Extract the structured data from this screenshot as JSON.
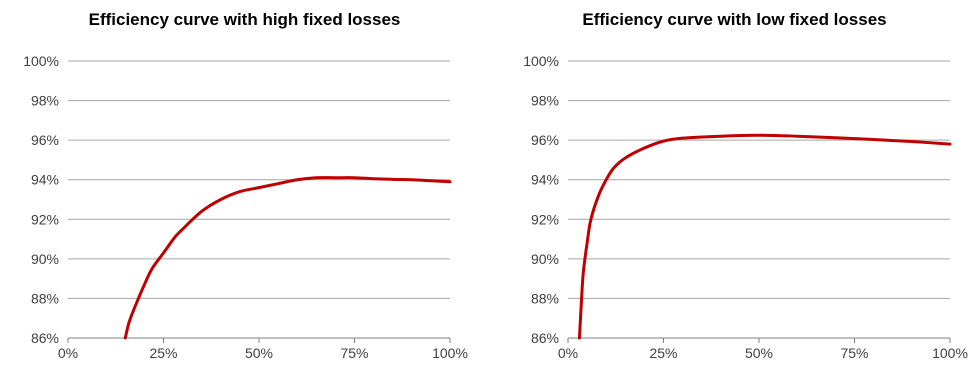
{
  "chart_data": [
    {
      "type": "line",
      "title": "Efficiency curve with high fixed losses",
      "xlabel": "",
      "ylabel": "",
      "x_ticks": [
        "0%",
        "25%",
        "50%",
        "75%",
        "100%"
      ],
      "y_ticks": [
        "86%",
        "88%",
        "90%",
        "92%",
        "94%",
        "96%",
        "98%",
        "100%"
      ],
      "xlim": [
        0,
        1
      ],
      "ylim": [
        0.86,
        1.0
      ],
      "grid": true,
      "series": [
        {
          "color": "#c00000",
          "x": [
            0.15,
            0.16,
            0.18,
            0.2,
            0.22,
            0.25,
            0.28,
            0.3,
            0.35,
            0.4,
            0.45,
            0.5,
            0.55,
            0.6,
            0.65,
            0.7,
            0.75,
            0.8,
            0.85,
            0.9,
            0.95,
            1.0
          ],
          "y": [
            0.86,
            0.868,
            0.878,
            0.887,
            0.895,
            0.903,
            0.911,
            0.915,
            0.924,
            0.93,
            0.934,
            0.936,
            0.938,
            0.94,
            0.941,
            0.941,
            0.941,
            0.9405,
            0.9402,
            0.94,
            0.9395,
            0.939
          ]
        }
      ]
    },
    {
      "type": "line",
      "title": "Efficiency curve with low fixed losses",
      "xlabel": "",
      "ylabel": "",
      "x_ticks": [
        "0%",
        "25%",
        "50%",
        "75%",
        "100%"
      ],
      "y_ticks": [
        "86%",
        "88%",
        "90%",
        "92%",
        "94%",
        "96%",
        "98%",
        "100%"
      ],
      "xlim": [
        0,
        1
      ],
      "ylim": [
        0.86,
        1.0
      ],
      "grid": true,
      "series": [
        {
          "color": "#c00000",
          "x": [
            0.03,
            0.035,
            0.04,
            0.05,
            0.06,
            0.08,
            0.1,
            0.12,
            0.15,
            0.2,
            0.25,
            0.3,
            0.4,
            0.5,
            0.6,
            0.7,
            0.8,
            0.9,
            1.0
          ],
          "y": [
            0.86,
            0.878,
            0.893,
            0.908,
            0.92,
            0.932,
            0.94,
            0.946,
            0.951,
            0.956,
            0.9595,
            0.961,
            0.962,
            0.9625,
            0.962,
            0.9612,
            0.9603,
            0.9593,
            0.958
          ]
        }
      ]
    }
  ]
}
